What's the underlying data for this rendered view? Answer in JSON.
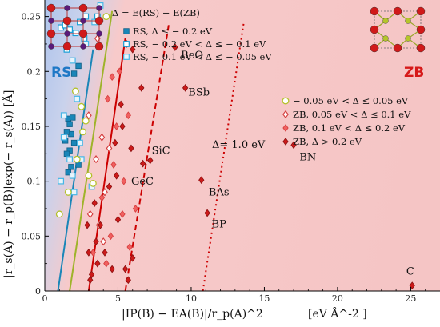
{
  "chart_data": {
    "type": "scatter",
    "xlabel": "|IP(B) − EA(B)|/r_p(A)^2",
    "xlabel_unit": "[eV Å^-2 ]",
    "ylabel": "|r_s(A) − r_p(B)|exp(− r_s(A)) [Å]",
    "xlim": [
      0,
      27
    ],
    "ylim": [
      0,
      0.265
    ],
    "xticks": [
      "0",
      "5",
      "10",
      "15",
      "20",
      "25"
    ],
    "yticks": [
      "0",
      "0.05",
      "0.1",
      "0.15",
      "0.2",
      "0.25"
    ],
    "legend_left_header": "Δ = E(RS) − E(ZB)",
    "legend_left": [
      {
        "label": "RS, Δ ≤ − 0.2 eV",
        "marker": "square-filled",
        "color": "#1a86b8"
      },
      {
        "label": "RS, − 0.2 eV  < Δ  ≤ − 0.1 eV",
        "marker": "square-open",
        "color": "#1a9fd6"
      },
      {
        "label": "RS, − 0.1 eV  < Δ  ≤ − 0.05 eV",
        "marker": "square-open-light",
        "color": "#47b6e6"
      }
    ],
    "legend_right": [
      {
        "label": "− 0.05 eV  < Δ  ≤ 0.05 eV",
        "marker": "circle-open",
        "color": "#b4c22a"
      },
      {
        "label": "ZB, 0.05 eV < Δ  ≤ 0.1 eV",
        "marker": "diamond-open",
        "color": "#d43a3a"
      },
      {
        "label": "ZB, 0.1 eV < Δ  ≤ 0.2 eV",
        "marker": "diamond-light",
        "color": "#ee5a5a"
      },
      {
        "label": "ZB, Δ  > 0.2 eV",
        "marker": "diamond-filled",
        "color": "#cc1a1a"
      }
    ],
    "region_labels": {
      "left": "RS",
      "right": "ZB"
    },
    "line_annotation": "Δ= 1.0 eV",
    "colors": {
      "rs": "#2a7fc0",
      "zb": "#d42a2a",
      "bg_rs": "#b9cdee",
      "bg_zb": "#f6c7c7",
      "green": "#9fb32a"
    },
    "boundary_lines": [
      {
        "name": "RS strong",
        "style": "solid",
        "color": "#1a86b8",
        "x1": 0.9,
        "y1": 0.0,
        "x2": 3.3,
        "y2": 0.22
      },
      {
        "name": "mixed",
        "style": "solid",
        "color": "#9fb32a",
        "x1": 1.7,
        "y1": 0.0,
        "x2": 4.6,
        "y2": 0.255
      },
      {
        "name": "ZB 0.1",
        "style": "solid",
        "color": "#cc0000",
        "x1": 3.0,
        "y1": 0.0,
        "x2": 5.5,
        "y2": 0.23
      },
      {
        "name": "ZB 0.2",
        "style": "dashed",
        "color": "#cc0000",
        "x1": 5.5,
        "y1": 0.0,
        "x2": 8.5,
        "y2": 0.245
      },
      {
        "name": "ZB 1.0",
        "style": "dotted",
        "color": "#cc0000",
        "x1": 10.8,
        "y1": 0.0,
        "x2": 13.6,
        "y2": 0.245
      }
    ],
    "labeled_points": [
      {
        "label": "BeO",
        "x": 8.9,
        "y": 0.222,
        "lx": 9.3,
        "ly": 0.212
      },
      {
        "label": "BSb",
        "x": 9.6,
        "y": 0.185,
        "lx": 9.8,
        "ly": 0.178
      },
      {
        "label": "SiC",
        "x": 7.2,
        "y": 0.119,
        "lx": 7.3,
        "ly": 0.125
      },
      {
        "label": "GeC",
        "x": 6.7,
        "y": 0.116,
        "lx": 5.9,
        "ly": 0.097
      },
      {
        "label": "BAs",
        "x": 10.7,
        "y": 0.101,
        "lx": 11.2,
        "ly": 0.087
      },
      {
        "label": "BP",
        "x": 11.1,
        "y": 0.071,
        "lx": 11.4,
        "ly": 0.058
      },
      {
        "label": "BN",
        "x": 17.0,
        "y": 0.133,
        "lx": 17.4,
        "ly": 0.119
      },
      {
        "label": "C",
        "x": 25.1,
        "y": 0.005,
        "lx": 24.7,
        "ly": 0.015
      }
    ],
    "series": [
      {
        "name": "RS, Δ ≤ − 0.2 eV",
        "marker": "square-filled",
        "points": [
          [
            1.6,
            0.157
          ],
          [
            1.7,
            0.152
          ],
          [
            1.8,
            0.143
          ],
          [
            2.0,
            0.135
          ],
          [
            1.7,
            0.128
          ],
          [
            1.5,
            0.125
          ],
          [
            2.3,
            0.115
          ],
          [
            1.8,
            0.113
          ],
          [
            1.6,
            0.108
          ],
          [
            2.0,
            0.198
          ],
          [
            2.3,
            0.205
          ],
          [
            1.4,
            0.137
          ],
          [
            1.9,
            0.158
          ],
          [
            1.5,
            0.145
          ]
        ]
      },
      {
        "name": "RS, − 0.2 eV < Δ ≤ − 0.1 eV",
        "marker": "square-open",
        "points": [
          [
            1.1,
            0.24
          ],
          [
            1.4,
            0.242
          ],
          [
            1.7,
            0.238
          ],
          [
            2.4,
            0.245
          ],
          [
            2.8,
            0.25
          ],
          [
            3.6,
            0.25
          ],
          [
            2.7,
            0.23
          ],
          [
            1.5,
            0.22
          ],
          [
            2.1,
            0.235
          ]
        ]
      },
      {
        "name": "RS, − 0.1 eV < Δ ≤ − 0.05 eV",
        "marker": "square-open-light",
        "points": [
          [
            1.9,
            0.21
          ],
          [
            2.2,
            0.175
          ],
          [
            1.3,
            0.14
          ],
          [
            1.7,
            0.12
          ],
          [
            2.4,
            0.135
          ],
          [
            1.1,
            0.1
          ],
          [
            2.0,
            0.09
          ],
          [
            3.2,
            0.095
          ],
          [
            3.4,
            0.245
          ],
          [
            1.3,
            0.16
          ],
          [
            2.5,
            0.12
          ],
          [
            1.9,
            0.105
          ],
          [
            2.8,
            0.225
          ],
          [
            3.8,
            0.26
          ]
        ]
      },
      {
        "name": "− 0.05 eV < Δ ≤ 0.05 eV",
        "marker": "circle-open",
        "points": [
          [
            2.5,
            0.168
          ],
          [
            2.1,
            0.182
          ],
          [
            2.8,
            0.155
          ],
          [
            4.2,
            0.25
          ],
          [
            2.2,
            0.12
          ],
          [
            3.3,
            0.098
          ],
          [
            1.6,
            0.09
          ],
          [
            1.0,
            0.07
          ],
          [
            2.6,
            0.145
          ],
          [
            3.0,
            0.105
          ]
        ]
      },
      {
        "name": "ZB, 0.05 eV < Δ ≤ 0.1 eV",
        "marker": "diamond-open",
        "points": [
          [
            3.6,
            0.23
          ],
          [
            3.0,
            0.16
          ],
          [
            3.9,
            0.14
          ],
          [
            3.5,
            0.12
          ],
          [
            4.4,
            0.13
          ],
          [
            4.1,
            0.09
          ],
          [
            3.1,
            0.07
          ],
          [
            3.7,
            0.06
          ],
          [
            4.0,
            0.045
          ]
        ]
      },
      {
        "name": "ZB, 0.1 eV < Δ ≤ 0.2 eV",
        "marker": "diamond-light",
        "points": [
          [
            4.6,
            0.195
          ],
          [
            5.1,
            0.2
          ],
          [
            4.9,
            0.15
          ],
          [
            5.7,
            0.16
          ],
          [
            4.3,
            0.175
          ],
          [
            4.7,
            0.115
          ],
          [
            5.4,
            0.1
          ],
          [
            3.9,
            0.085
          ],
          [
            5.3,
            0.07
          ],
          [
            4.5,
            0.05
          ],
          [
            4.2,
            0.025
          ],
          [
            5.8,
            0.04
          ],
          [
            6.2,
            0.075
          ],
          [
            3.3,
            0.035
          ]
        ]
      },
      {
        "name": "ZB, Δ > 0.2 eV",
        "marker": "diamond-filled",
        "points": [
          [
            8.9,
            0.222
          ],
          [
            9.6,
            0.185
          ],
          [
            7.2,
            0.119
          ],
          [
            6.7,
            0.116
          ],
          [
            10.7,
            0.101
          ],
          [
            11.1,
            0.071
          ],
          [
            17.0,
            0.133
          ],
          [
            25.1,
            0.005
          ],
          [
            5.6,
            0.225
          ],
          [
            5.2,
            0.17
          ],
          [
            6.0,
            0.22
          ],
          [
            6.6,
            0.185
          ],
          [
            4.8,
            0.135
          ],
          [
            5.9,
            0.13
          ],
          [
            4.9,
            0.105
          ],
          [
            3.4,
            0.08
          ],
          [
            5.0,
            0.065
          ],
          [
            3.8,
            0.06
          ],
          [
            2.9,
            0.06
          ],
          [
            3.5,
            0.045
          ],
          [
            4.1,
            0.035
          ],
          [
            3.0,
            0.035
          ],
          [
            3.6,
            0.025
          ],
          [
            4.6,
            0.02
          ],
          [
            5.5,
            0.02
          ],
          [
            3.2,
            0.015
          ],
          [
            5.7,
            0.01
          ],
          [
            3.1,
            0.01
          ],
          [
            6.0,
            0.03
          ],
          [
            4.4,
            0.095
          ],
          [
            5.3,
            0.15
          ]
        ]
      }
    ]
  }
}
